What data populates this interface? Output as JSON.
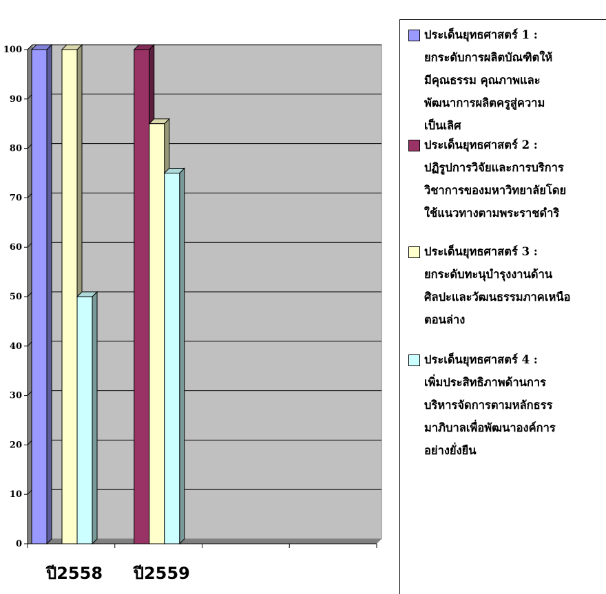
{
  "chart_data": {
    "type": "bar",
    "categories": [
      "ปี2558",
      "ปี2559"
    ],
    "series": [
      {
        "name": "ประเด็นยุทธศาสตร์ 1 :\nยกระดับการผลิตบัณฑิตให้\nมีคุณธรรม คุณภาพและ\nพัฒนาการผลิตครูสู่ความ\nเป็นเลิศ",
        "color": "#9999ff",
        "values": [
          100,
          null
        ]
      },
      {
        "name": "ประเด็นยุทธศาสตร์ 2 :\nปฏิรูปการวิจัยและการบริการ\nวิชาการของมหาวิทยาลัยโดย\nใช้แนวทางตามพระราชดำริ",
        "color": "#993366",
        "values": [
          null,
          100
        ]
      },
      {
        "name": "ประเด็นยุทธศาสตร์ 3 :\nยกระดับทะนุบำรุงงานด้าน\nศิลปะและวัฒนธรรมภาคเหนือ\nตอนล่าง",
        "color": "#ffffcc",
        "values": [
          100,
          85
        ]
      },
      {
        "name": "ประเด็นยุทธศาสตร์ 4 :\nเพิ่มประสิทธิภาพด้านการ\nบริหารจัดการตามหลักธรร\nมาภิบาลเพื่อพัฒนาองค์การ\nอย่างยั่งยืน",
        "color": "#ccffff",
        "values": [
          50,
          75
        ]
      }
    ],
    "ylim": [
      0,
      100
    ],
    "yticks": [
      0,
      10,
      20,
      30,
      40,
      50,
      60,
      70,
      80,
      90,
      100
    ],
    "grid": true,
    "legend": "right",
    "plot_background": "#c0c0c0"
  }
}
